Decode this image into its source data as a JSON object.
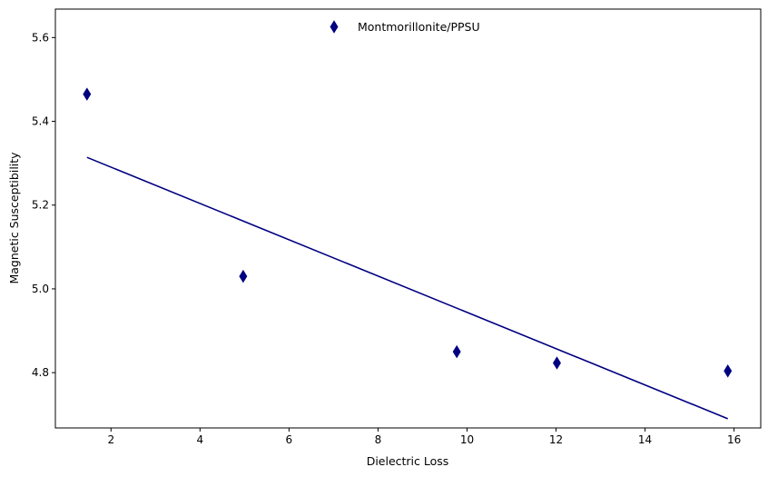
{
  "chart_data": {
    "type": "scatter",
    "title": "",
    "xlabel": "Dielectric Loss",
    "ylabel": "Magnetic Susceptibility",
    "xlim": [
      0.75,
      16.6
    ],
    "ylim": [
      4.668,
      5.668
    ],
    "xticks": [
      2,
      4,
      6,
      8,
      10,
      12,
      14,
      16
    ],
    "xtick_labels": [
      "2",
      "4",
      "6",
      "8",
      "10",
      "12",
      "14",
      "16"
    ],
    "yticks": [
      4.8,
      5.0,
      5.2,
      5.4,
      5.6
    ],
    "ytick_labels": [
      "4.8",
      "5.0",
      "5.2",
      "5.4",
      "5.6"
    ],
    "grid": false,
    "legend_position": "top-center",
    "series": [
      {
        "name": "Montmorillonite/PPSU",
        "kind": "scatter",
        "marker": "thin-diamond",
        "color": "#000080",
        "x": [
          1.46,
          4.97,
          9.77,
          12.02,
          15.86
        ],
        "y": [
          5.465,
          5.03,
          4.85,
          4.823,
          4.804
        ]
      },
      {
        "name": "trend",
        "kind": "line",
        "color": "#000080",
        "x": [
          1.46,
          15.86
        ],
        "y": [
          5.314,
          4.69
        ]
      }
    ]
  }
}
